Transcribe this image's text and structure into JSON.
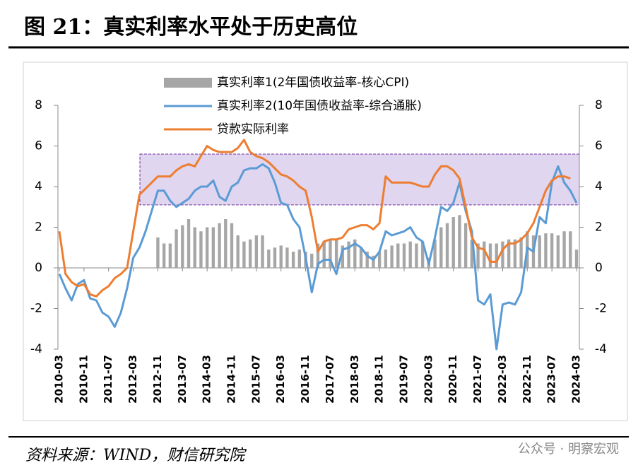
{
  "chart_data": {
    "type": "combo",
    "title": "图 21：真实利率水平处于历史高位",
    "source": "资料来源：WIND，财信研究院",
    "watermark": "公众号 · 明察宏观",
    "categories": [
      "2010-03",
      null,
      null,
      null,
      "2010-11",
      null,
      null,
      null,
      "2011-07",
      null,
      null,
      null,
      "2012-03",
      null,
      null,
      null,
      "2012-11",
      null,
      null,
      null,
      "2013-07",
      null,
      null,
      null,
      "2014-03",
      null,
      null,
      null,
      "2014-11",
      null,
      null,
      null,
      "2015-07",
      null,
      null,
      null,
      "2016-03",
      null,
      null,
      null,
      "2016-11",
      null,
      null,
      null,
      "2017-07",
      null,
      null,
      null,
      "2018-03",
      null,
      null,
      null,
      "2018-11",
      null,
      null,
      null,
      "2019-07",
      null,
      null,
      null,
      "2020-03",
      null,
      null,
      null,
      "2020-11",
      null,
      null,
      null,
      "2021-07",
      null,
      null,
      null,
      "2022-03",
      null,
      null,
      null,
      "2022-11",
      null,
      null,
      null,
      "2023-07",
      null,
      null,
      null,
      "2024-03"
    ],
    "series": [
      {
        "name": "真实利率1(2年国债收益率-核心CPI)",
        "type": "bar",
        "color": "#a6a6a6",
        "values": [
          null,
          null,
          null,
          null,
          null,
          null,
          null,
          null,
          null,
          null,
          null,
          null,
          null,
          null,
          null,
          null,
          1.5,
          1.2,
          1.2,
          1.9,
          2.1,
          2.4,
          2.0,
          1.8,
          2.0,
          2.0,
          2.2,
          2.4,
          2.2,
          1.6,
          1.3,
          1.4,
          1.6,
          1.6,
          0.9,
          1.0,
          1.1,
          1.0,
          0.8,
          0.9,
          0.8,
          0.7,
          1.2,
          1.3,
          1.4,
          1.4,
          1.1,
          1.3,
          1.4,
          1.0,
          0.8,
          0.6,
          0.8,
          0.9,
          1.1,
          1.2,
          1.2,
          1.3,
          1.2,
          1.3,
          0.5,
          1.4,
          2.0,
          2.2,
          2.5,
          2.6,
          2.2,
          1.4,
          1.2,
          1.3,
          1.2,
          1.2,
          1.3,
          1.4,
          1.4,
          1.5,
          1.8,
          1.6,
          1.6,
          1.7,
          1.7,
          1.6,
          1.8,
          1.8,
          0.9
        ]
      },
      {
        "name": "真实利率2(10年国债收益率-综合通胀)",
        "type": "line",
        "color": "#5b9bd5",
        "values": [
          -0.3,
          -1.0,
          -1.6,
          -0.8,
          -0.6,
          -1.5,
          -1.6,
          -2.2,
          -2.4,
          -2.9,
          -2.2,
          -1.0,
          0.5,
          1.0,
          1.8,
          2.8,
          3.8,
          3.8,
          3.3,
          3.0,
          3.2,
          3.4,
          3.8,
          4.0,
          4.0,
          4.3,
          3.5,
          3.3,
          4.0,
          4.2,
          4.8,
          4.9,
          4.9,
          5.1,
          4.9,
          4.2,
          3.2,
          3.1,
          2.4,
          2.0,
          0.5,
          -1.2,
          0.2,
          0.4,
          0.4,
          -0.3,
          0.9,
          1.0,
          1.2,
          1.0,
          0.6,
          0.4,
          0.8,
          1.8,
          1.6,
          1.7,
          1.8,
          2.0,
          1.5,
          1.3,
          0.2,
          1.5,
          3.0,
          2.8,
          3.2,
          4.2,
          2.8,
          1.8,
          -1.6,
          -1.8,
          -1.3,
          -4.0,
          -1.8,
          -1.7,
          -1.8,
          -1.2,
          1.0,
          0.8,
          2.5,
          2.2,
          4.2,
          5.0,
          4.2,
          3.8,
          3.2
        ]
      },
      {
        "name": "贷款实际利率",
        "type": "line",
        "color": "#ed7d31",
        "values": [
          1.8,
          -0.3,
          -0.7,
          -0.9,
          -0.8,
          -1.3,
          -1.4,
          -1.1,
          -0.9,
          -0.5,
          -0.3,
          0.0,
          1.8,
          3.6,
          3.9,
          4.2,
          4.5,
          4.5,
          4.5,
          4.8,
          5.0,
          5.1,
          5.0,
          5.5,
          6.0,
          5.8,
          5.7,
          5.7,
          5.7,
          5.9,
          6.3,
          5.7,
          5.5,
          5.4,
          5.2,
          4.9,
          4.6,
          4.5,
          4.3,
          4.0,
          3.8,
          2.5,
          0.8,
          1.3,
          1.4,
          1.4,
          1.5,
          1.9,
          2.0,
          2.1,
          2.1,
          1.9,
          2.2,
          4.5,
          4.2,
          4.2,
          4.2,
          4.2,
          4.1,
          4.0,
          4.0,
          4.6,
          5.0,
          5.0,
          4.8,
          4.4,
          3.0,
          1.5,
          1.0,
          0.9,
          0.3,
          0.3,
          0.9,
          1.2,
          1.2,
          1.4,
          1.7,
          2.2,
          3.0,
          3.8,
          4.3,
          4.5,
          4.5,
          4.4,
          null
        ]
      }
    ],
    "highlight_y": [
      3.1,
      5.6
    ],
    "ylim": [
      -4,
      8
    ],
    "yticks": [
      -4,
      -2,
      0,
      2,
      4,
      6,
      8
    ],
    "y2lim": [
      -4,
      8
    ],
    "y2ticks": [
      -4,
      -2,
      0,
      2,
      4,
      6,
      8
    ]
  }
}
